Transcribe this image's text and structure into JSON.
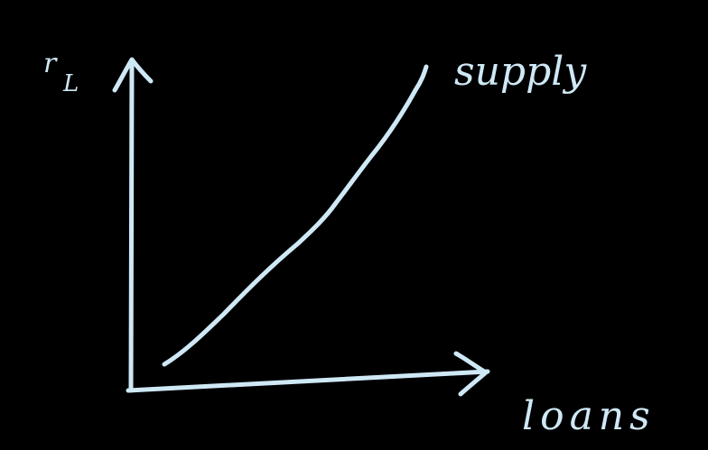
{
  "colors": {
    "background": "#000000",
    "ink": "#cfe8f5"
  },
  "labels": {
    "y_axis": "r",
    "y_axis_subscript": "L",
    "x_axis": "loans",
    "curve": "supply"
  }
}
